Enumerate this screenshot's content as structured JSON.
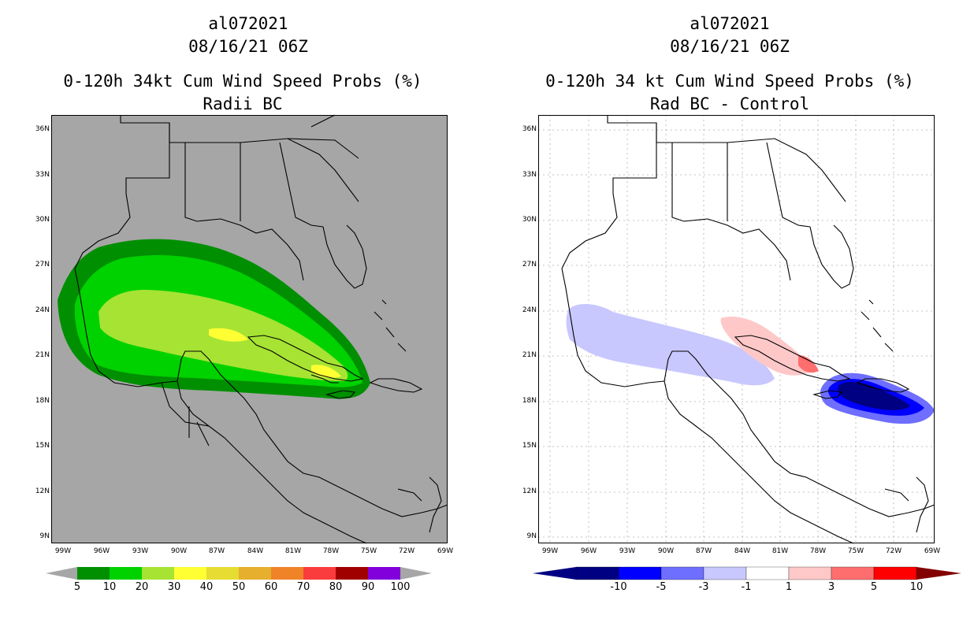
{
  "left_panel": {
    "title_line1": "al072021",
    "title_line2": "08/16/21 06Z",
    "title_line3": "0-120h 34kt Cum Wind Speed Probs (%)",
    "title_line4": "Radii BC",
    "lat_labels": [
      "36N",
      "33N",
      "30N",
      "27N",
      "24N",
      "21N",
      "18N",
      "15N",
      "12N",
      "9N"
    ],
    "lon_labels": [
      "99W",
      "96W",
      "93W",
      "90W",
      "87W",
      "84W",
      "81W",
      "78W",
      "75W",
      "72W",
      "69W"
    ],
    "colorbar": {
      "labels": [
        "5",
        "10",
        "20",
        "30",
        "40",
        "50",
        "60",
        "70",
        "80",
        "90",
        "100"
      ],
      "colors": [
        "#008f00",
        "#00d200",
        "#a6e333",
        "#ffff33",
        "#e6dc32",
        "#e6af2d",
        "#f08228",
        "#fa3c3c",
        "#a00000",
        "#8200dc"
      ]
    },
    "background_color": "#a6a6a6"
  },
  "right_panel": {
    "title_line1": "al072021",
    "title_line2": "08/16/21 06Z",
    "title_line3": "0-120h 34 kt Cum Wind Speed Probs (%)",
    "title_line4": "Rad BC - Control",
    "lat_labels": [
      "36N",
      "33N",
      "30N",
      "27N",
      "24N",
      "21N",
      "18N",
      "15N",
      "12N",
      "9N"
    ],
    "lon_labels": [
      "99W",
      "96W",
      "93W",
      "90W",
      "87W",
      "84W",
      "81W",
      "78W",
      "75W",
      "72W",
      "69W"
    ],
    "colorbar": {
      "labels": [
        "-10",
        "-5",
        "-3",
        "-1",
        "1",
        "3",
        "5",
        "10"
      ],
      "colors": [
        "#000082",
        "#0000ff",
        "#6e6eff",
        "#c8c8ff",
        "#ffffff",
        "#ffc8c8",
        "#ff6e6e",
        "#ff0000"
      ],
      "end_low": "#000082",
      "end_high": "#820000"
    },
    "background_color": "#ffffff"
  }
}
